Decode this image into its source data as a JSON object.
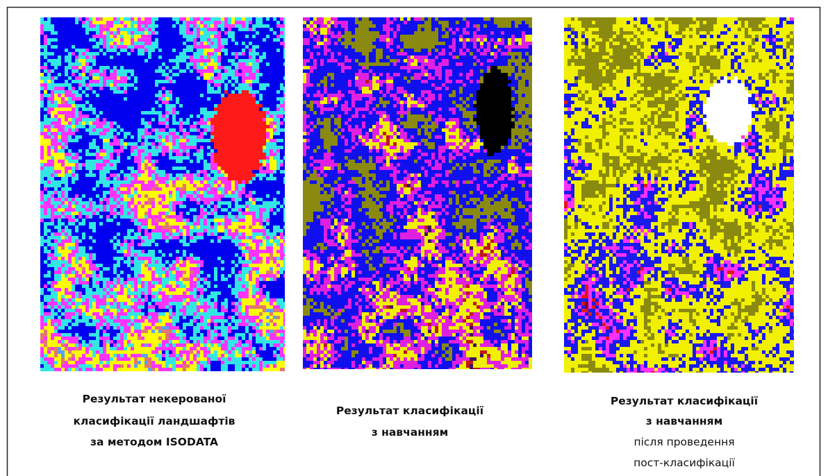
{
  "figures": [
    {
      "caption_bold": [
        "Результат некерованої",
        "класифікації ландшафтів",
        "за методом ISODATA"
      ],
      "caption_normal": []
    },
    {
      "caption_bold": [
        "Результат класифікації",
        "з навчанням"
      ],
      "caption_normal": []
    },
    {
      "caption_bold": [
        "Результат класифікації",
        "з навчанням"
      ],
      "caption_normal": [
        "після проведення",
        "пост-класифікації"
      ]
    }
  ]
}
